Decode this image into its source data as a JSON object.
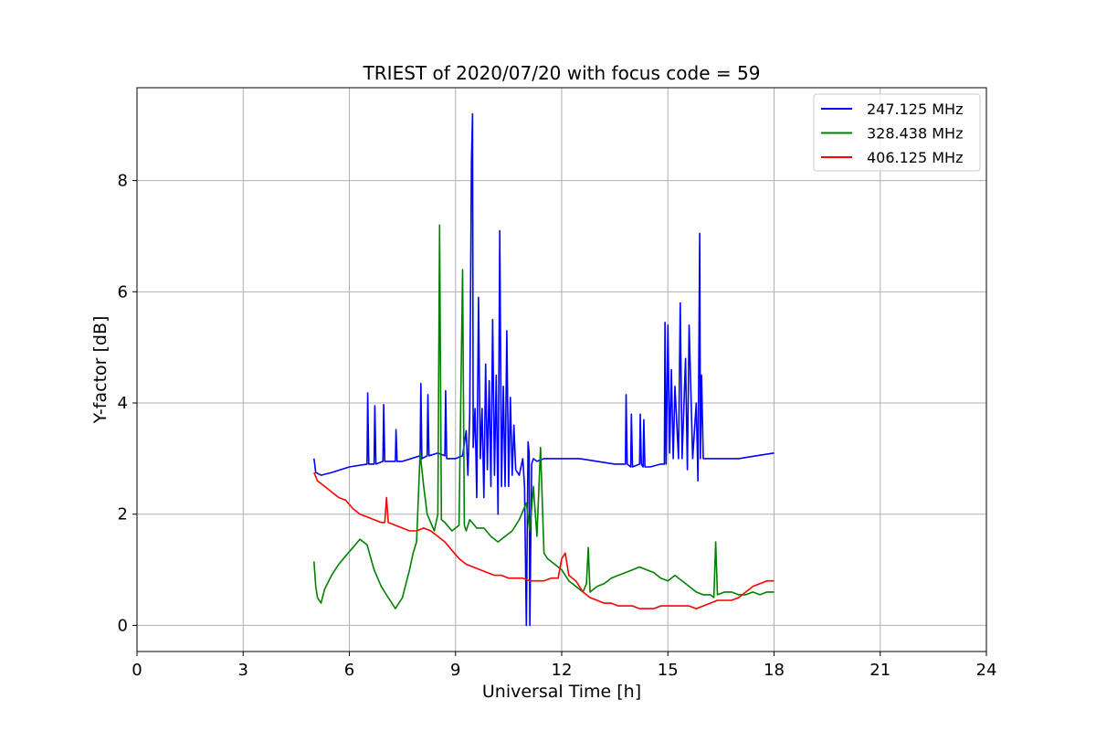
{
  "chart_data": {
    "type": "line",
    "title": "TRIEST of 2020/07/20 with focus code = 59",
    "xlabel": "Universal Time [h]",
    "ylabel": "Y-factor [dB]",
    "xlim": [
      0,
      24
    ],
    "ylim": [
      -0.47,
      9.67
    ],
    "xticks": [
      0,
      3,
      6,
      9,
      12,
      15,
      18,
      21,
      24
    ],
    "yticks": [
      0,
      2,
      4,
      6,
      8
    ],
    "grid": true,
    "legend_position": "top-right",
    "series": [
      {
        "name": "247.125 MHz",
        "color": "#0000ff",
        "x": [
          5.0,
          5.05,
          5.2,
          5.5,
          6.0,
          6.5,
          6.52,
          6.55,
          6.7,
          6.72,
          6.75,
          6.95,
          6.97,
          7.0,
          7.3,
          7.32,
          7.35,
          7.5,
          8.0,
          8.02,
          8.05,
          8.2,
          8.22,
          8.25,
          8.5,
          8.7,
          8.72,
          8.75,
          9.0,
          9.2,
          9.3,
          9.35,
          9.4,
          9.45,
          9.48,
          9.5,
          9.55,
          9.6,
          9.65,
          9.7,
          9.75,
          9.8,
          9.85,
          9.9,
          9.95,
          10.0,
          10.05,
          10.1,
          10.15,
          10.2,
          10.25,
          10.3,
          10.35,
          10.4,
          10.45,
          10.5,
          10.55,
          10.6,
          10.65,
          10.7,
          10.8,
          10.9,
          10.95,
          11.0,
          11.05,
          11.08,
          11.1,
          11.15,
          11.2,
          11.3,
          11.5,
          12.0,
          12.5,
          13.0,
          13.5,
          13.8,
          13.82,
          13.85,
          13.95,
          13.97,
          14.0,
          14.2,
          14.22,
          14.25,
          14.3,
          14.32,
          14.35,
          14.5,
          14.8,
          14.9,
          14.92,
          14.95,
          15.0,
          15.05,
          15.1,
          15.15,
          15.2,
          15.3,
          15.35,
          15.4,
          15.5,
          15.55,
          15.6,
          15.7,
          15.8,
          15.85,
          15.9,
          15.92,
          15.95,
          16.0,
          16.1,
          16.5,
          17.0,
          17.5,
          18.0
        ],
        "y": [
          3.0,
          2.75,
          2.7,
          2.75,
          2.85,
          2.9,
          4.18,
          2.9,
          2.9,
          3.95,
          2.9,
          2.95,
          3.97,
          2.95,
          2.95,
          3.52,
          2.95,
          2.95,
          3.05,
          4.35,
          3.0,
          3.05,
          4.15,
          3.05,
          3.1,
          3.05,
          4.22,
          3.0,
          3.0,
          3.05,
          3.5,
          2.7,
          3.8,
          8.35,
          9.2,
          3.2,
          3.9,
          2.3,
          5.9,
          3.0,
          3.9,
          2.3,
          4.7,
          2.8,
          4.4,
          2.5,
          5.5,
          2.7,
          4.5,
          2.0,
          7.1,
          2.5,
          4.3,
          2.5,
          5.3,
          2.5,
          4.1,
          2.7,
          3.6,
          2.8,
          2.7,
          3.0,
          2.5,
          0.0,
          3.3,
          3.1,
          0.0,
          2.9,
          3.0,
          2.95,
          3.0,
          3.0,
          3.0,
          2.95,
          2.9,
          2.9,
          4.15,
          2.9,
          2.85,
          3.8,
          2.85,
          2.9,
          3.8,
          2.9,
          2.85,
          3.7,
          2.85,
          2.85,
          2.9,
          2.9,
          5.45,
          2.9,
          5.4,
          3.1,
          4.6,
          3.0,
          4.3,
          3.0,
          5.8,
          3.0,
          4.8,
          2.8,
          5.4,
          3.0,
          4.0,
          2.6,
          7.05,
          3.0,
          4.5,
          3.0,
          3.0,
          3.0,
          3.0,
          3.05,
          3.1
        ]
      },
      {
        "name": "328.438 MHz",
        "color": "#008000",
        "x": [
          5.0,
          5.05,
          5.1,
          5.2,
          5.3,
          5.5,
          5.7,
          5.9,
          6.1,
          6.3,
          6.5,
          6.7,
          6.9,
          7.1,
          7.3,
          7.5,
          7.7,
          7.8,
          7.9,
          8.0,
          8.1,
          8.2,
          8.4,
          8.5,
          8.55,
          8.6,
          8.7,
          8.9,
          9.1,
          9.2,
          9.25,
          9.3,
          9.4,
          9.6,
          9.8,
          10.0,
          10.2,
          10.4,
          10.6,
          10.8,
          11.0,
          11.1,
          11.2,
          11.3,
          11.4,
          11.5,
          11.6,
          11.8,
          12.0,
          12.2,
          12.4,
          12.6,
          12.7,
          12.75,
          12.8,
          13.0,
          13.2,
          13.4,
          13.6,
          13.8,
          14.0,
          14.2,
          14.4,
          14.6,
          14.8,
          15.0,
          15.2,
          15.4,
          15.6,
          15.8,
          16.0,
          16.2,
          16.3,
          16.35,
          16.4,
          16.6,
          16.8,
          17.0,
          17.2,
          17.4,
          17.6,
          17.8,
          18.0
        ],
        "y": [
          1.15,
          0.7,
          0.5,
          0.4,
          0.65,
          0.9,
          1.1,
          1.25,
          1.4,
          1.55,
          1.45,
          1.0,
          0.7,
          0.5,
          0.3,
          0.5,
          1.0,
          1.3,
          1.5,
          3.1,
          2.5,
          2.0,
          1.7,
          2.0,
          7.2,
          1.9,
          1.85,
          1.7,
          1.8,
          6.4,
          1.8,
          1.7,
          1.9,
          1.75,
          1.75,
          1.6,
          1.5,
          1.6,
          1.7,
          1.9,
          2.2,
          1.7,
          2.5,
          1.6,
          3.2,
          1.3,
          1.2,
          1.1,
          1.0,
          0.8,
          0.7,
          0.6,
          0.75,
          1.4,
          0.6,
          0.7,
          0.75,
          0.85,
          0.9,
          0.95,
          1.0,
          1.05,
          1.0,
          0.95,
          0.85,
          0.8,
          0.9,
          0.8,
          0.7,
          0.6,
          0.55,
          0.55,
          0.5,
          1.5,
          0.55,
          0.6,
          0.6,
          0.55,
          0.55,
          0.6,
          0.55,
          0.6,
          0.6
        ]
      },
      {
        "name": "406.125 MHz",
        "color": "#ff0000",
        "x": [
          5.0,
          5.1,
          5.3,
          5.5,
          5.7,
          5.9,
          6.1,
          6.3,
          6.5,
          6.7,
          6.9,
          7.0,
          7.05,
          7.1,
          7.3,
          7.5,
          7.7,
          7.9,
          8.1,
          8.3,
          8.5,
          8.7,
          8.9,
          9.1,
          9.3,
          9.5,
          9.7,
          9.9,
          10.1,
          10.3,
          10.5,
          10.7,
          10.9,
          11.1,
          11.3,
          11.5,
          11.7,
          11.9,
          12.0,
          12.1,
          12.2,
          12.4,
          12.6,
          12.8,
          13.0,
          13.2,
          13.4,
          13.6,
          13.8,
          14.0,
          14.2,
          14.4,
          14.6,
          14.8,
          15.0,
          15.2,
          15.4,
          15.6,
          15.8,
          16.0,
          16.2,
          16.4,
          16.6,
          16.8,
          17.0,
          17.2,
          17.4,
          17.6,
          17.8,
          18.0
        ],
        "y": [
          2.75,
          2.6,
          2.5,
          2.4,
          2.3,
          2.25,
          2.1,
          2.0,
          1.95,
          1.9,
          1.85,
          1.85,
          2.3,
          1.85,
          1.8,
          1.75,
          1.7,
          1.7,
          1.75,
          1.7,
          1.6,
          1.5,
          1.35,
          1.2,
          1.1,
          1.05,
          1.0,
          0.95,
          0.9,
          0.9,
          0.85,
          0.85,
          0.85,
          0.8,
          0.8,
          0.8,
          0.85,
          0.85,
          1.2,
          1.3,
          0.9,
          0.8,
          0.6,
          0.5,
          0.45,
          0.4,
          0.4,
          0.35,
          0.35,
          0.35,
          0.3,
          0.3,
          0.3,
          0.35,
          0.35,
          0.35,
          0.35,
          0.35,
          0.3,
          0.35,
          0.4,
          0.45,
          0.45,
          0.45,
          0.5,
          0.6,
          0.7,
          0.75,
          0.8,
          0.8
        ]
      }
    ]
  }
}
